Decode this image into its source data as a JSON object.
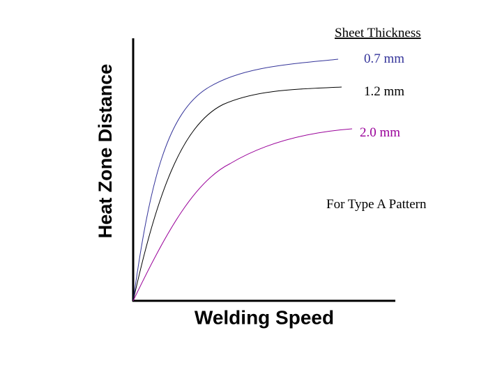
{
  "axes": {
    "y_label": "Heat Zone Distance",
    "x_label": "Welding Speed"
  },
  "legend": {
    "title": "Sheet Thickness",
    "entries": [
      "0.7 mm",
      "1.2 mm",
      "2.0 mm"
    ]
  },
  "note": "For Type A Pattern"
}
